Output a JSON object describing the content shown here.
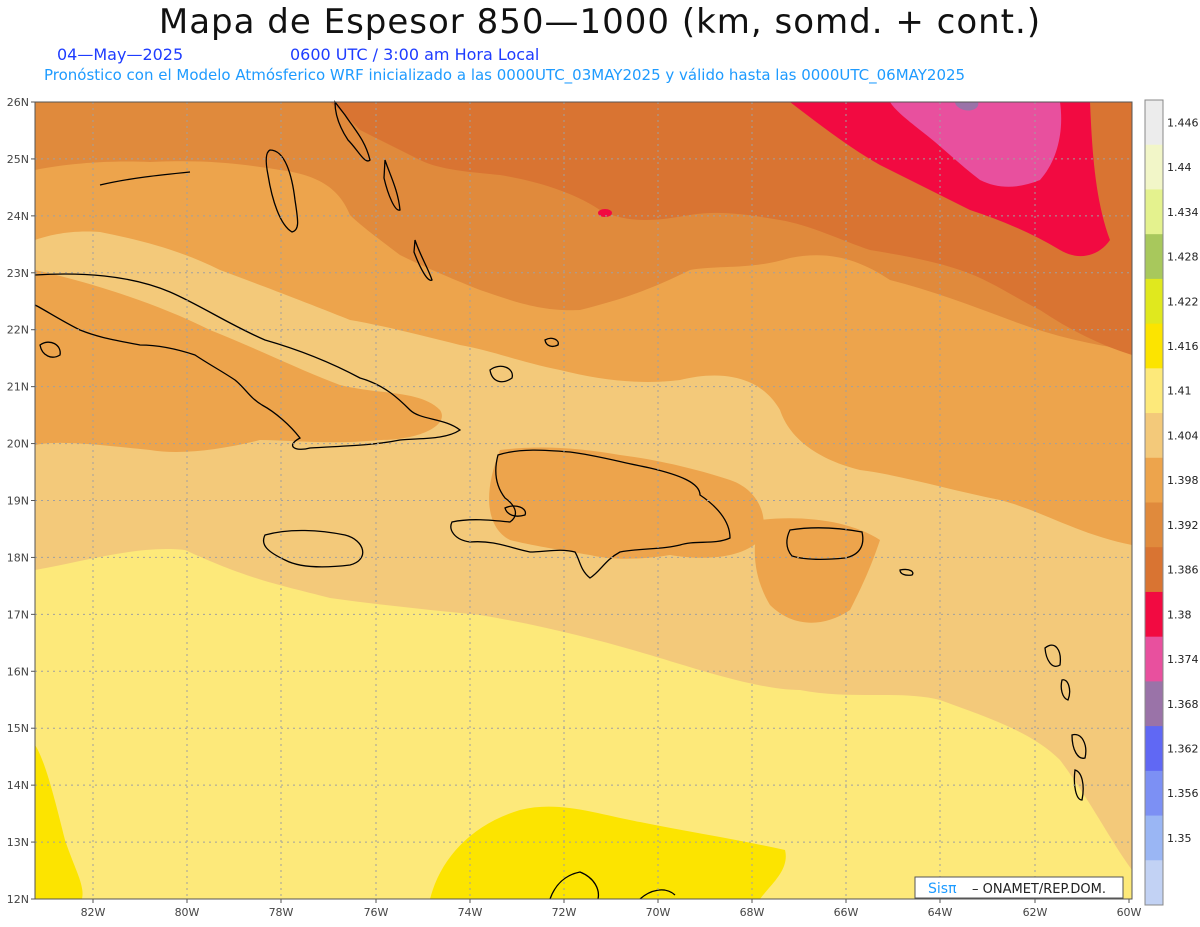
{
  "header": {
    "title": "Mapa de Espesor 850—1000 (km, somd. + cont.)",
    "date": "04—May—2025",
    "time": "0600 UTC / 3:00 am Hora Local",
    "forecast": "Pronóstico con el Modelo Atmósferico WRF inicializado a las 0000UTC_03MAY2025 y válido hasta las  0000UTC_06MAY2025"
  },
  "axes": {
    "lat_labels": [
      "26N",
      "25N",
      "24N",
      "23N",
      "22N",
      "21N",
      "20N",
      "19N",
      "18N",
      "17N",
      "16N",
      "15N",
      "14N",
      "13N",
      "12N"
    ],
    "lon_labels": [
      "82W",
      "80W",
      "78W",
      "76W",
      "74W",
      "72W",
      "70W",
      "68W",
      "66W",
      "64W",
      "62W",
      "60W"
    ]
  },
  "colorbar": {
    "labels": [
      "1.446",
      "1.44",
      "1.434",
      "1.428",
      "1.422",
      "1.416",
      "1.41",
      "1.404",
      "1.398",
      "1.392",
      "1.386",
      "1.38",
      "1.374",
      "1.368",
      "1.362",
      "1.356",
      "1.35"
    ],
    "colors": [
      "#ececec",
      "#f2f6c8",
      "#e4f28e",
      "#a8c85c",
      "#e0e81e",
      "#fce400",
      "#fde97a",
      "#f3c97a",
      "#eda44c",
      "#e08a3c",
      "#d97432",
      "#f20a41",
      "#e8509e",
      "#9a73a8",
      "#6068f4",
      "#7c90f4",
      "#9ab6f4",
      "#c2d2f4"
    ]
  },
  "credit": {
    "brand": "Sisπ",
    "text": "– ONAMET/REP.DOM."
  },
  "colors": {
    "c1404": "#f3c97a",
    "c1410": "#fde97a",
    "c1416": "#fce400",
    "c1398": "#eda44c",
    "c1392": "#e08a3c",
    "c1386": "#d97432",
    "c1380": "#f20a41",
    "c1374": "#e8509e",
    "c1368": "#9a73a8"
  }
}
